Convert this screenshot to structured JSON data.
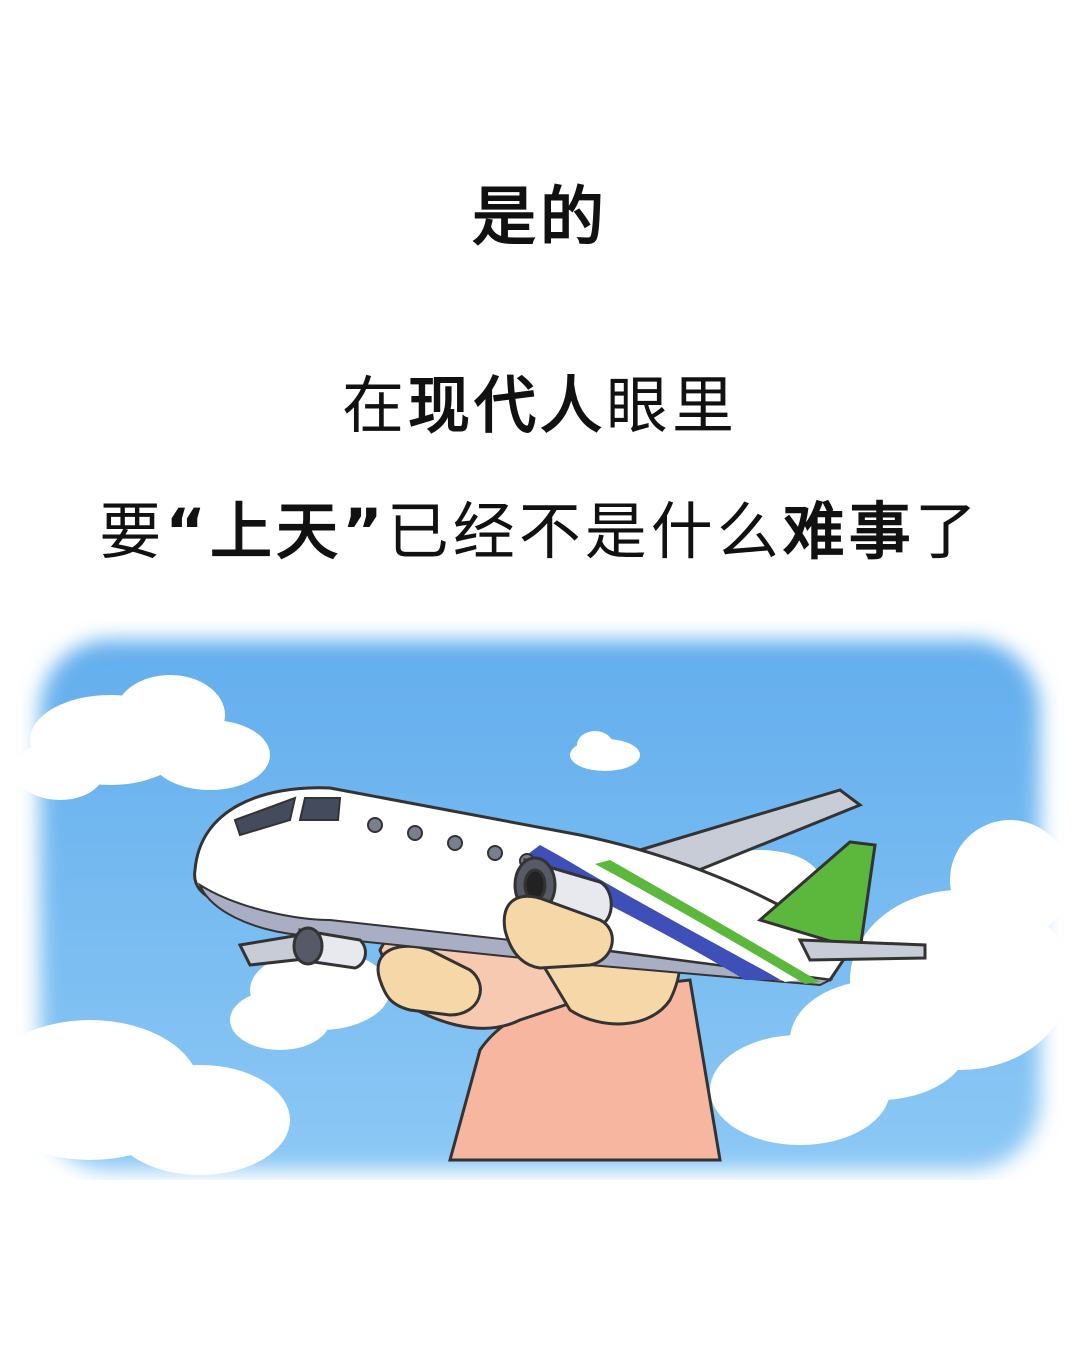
{
  "heading": "是的",
  "line2": {
    "part1": "在",
    "bold1": "现代人",
    "part2": "眼里"
  },
  "line3": {
    "part1": "要",
    "bold1": "“上天”",
    "part2": "已经不是什么",
    "bold2": "难事",
    "part3": "了"
  },
  "illustration": {
    "sky_color": "#6fb7f0",
    "plane_body_color": "#ffffff",
    "plane_stripe_blue": "#3f4fb8",
    "plane_tail_green": "#5cb83c",
    "hand_color": "#f6d7a8"
  }
}
